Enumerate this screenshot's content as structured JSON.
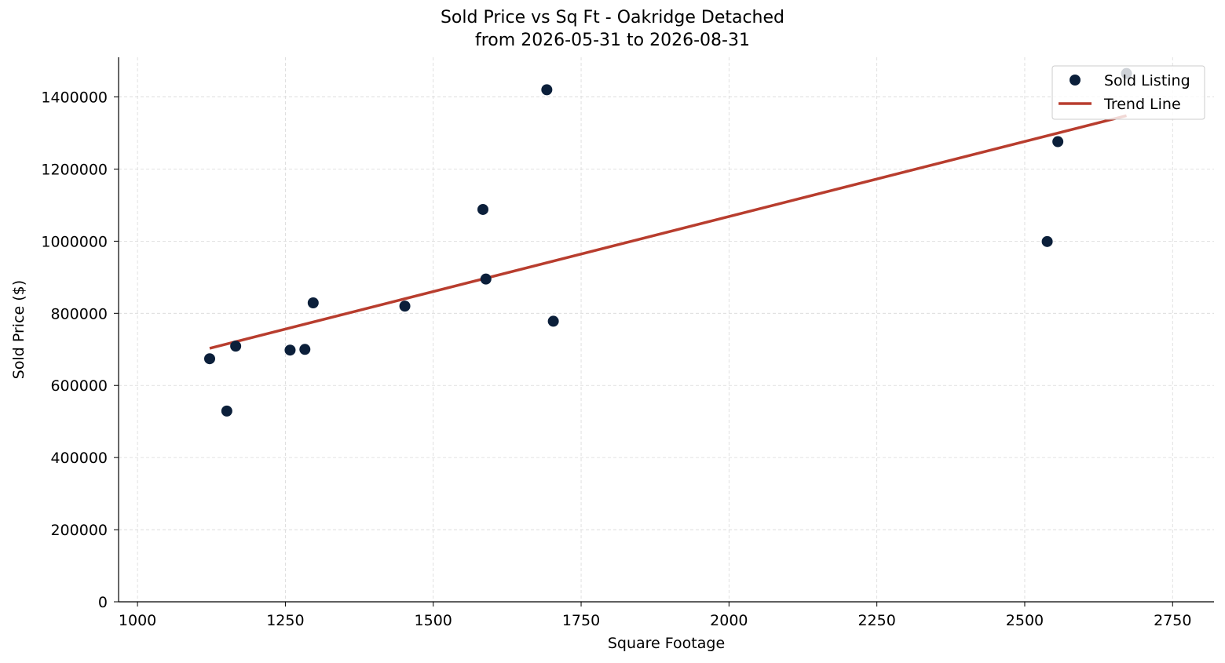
{
  "chart_data": {
    "type": "scatter",
    "title": "Sold Price vs Sq Ft - Oakridge Detached",
    "subtitle": "from 2026-05-31 to 2026-08-31",
    "xlabel": "Square Footage",
    "ylabel": "Sold Price ($)",
    "xlim": [
      968,
      2820
    ],
    "ylim": [
      0,
      1510000
    ],
    "xticks": [
      "1000",
      "1250",
      "1500",
      "1750",
      "2000",
      "2250",
      "2500",
      "2750"
    ],
    "xtick_values": [
      1000,
      1250,
      1500,
      1750,
      2000,
      2250,
      2500,
      2750
    ],
    "yticks": [
      "0",
      "200000",
      "400000",
      "600000",
      "800000",
      "1000000",
      "1200000",
      "1400000"
    ],
    "ytick_values": [
      0,
      200000,
      400000,
      600000,
      800000,
      1000000,
      1200000,
      1400000
    ],
    "grid": true,
    "legend_position": "top-right",
    "series": [
      {
        "name": "Sold Listing",
        "kind": "scatter",
        "color": "#0b1f3a",
        "points": [
          {
            "x": 1122,
            "y": 674000
          },
          {
            "x": 1151,
            "y": 529000
          },
          {
            "x": 1166,
            "y": 709000
          },
          {
            "x": 1258,
            "y": 698000
          },
          {
            "x": 1283,
            "y": 700000
          },
          {
            "x": 1297,
            "y": 829000
          },
          {
            "x": 1452,
            "y": 820000
          },
          {
            "x": 1584,
            "y": 1088000
          },
          {
            "x": 1589,
            "y": 895000
          },
          {
            "x": 1692,
            "y": 1420000
          },
          {
            "x": 1703,
            "y": 778000
          },
          {
            "x": 2538,
            "y": 999000
          },
          {
            "x": 2556,
            "y": 1276000
          },
          {
            "x": 2672,
            "y": 1465000
          }
        ]
      },
      {
        "name": "Trend Line",
        "kind": "line",
        "color": "#b83d2e",
        "points": [
          {
            "x": 1122,
            "y": 703000
          },
          {
            "x": 2672,
            "y": 1348000
          }
        ]
      }
    ]
  }
}
